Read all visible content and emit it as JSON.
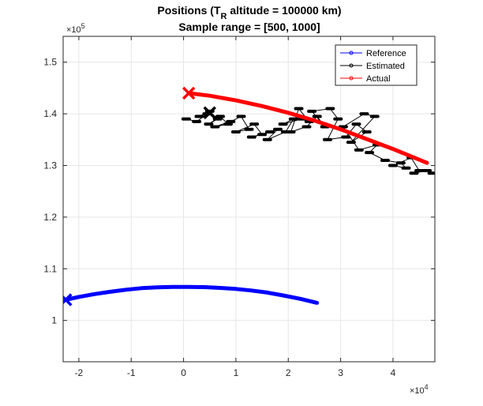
{
  "chart_data": {
    "type": "line",
    "title_line1": "Positions (T",
    "title_sub": "R",
    "title_line1_rest": " altitude = 100000 km)",
    "title_line2": "Sample range = [500, 1000]",
    "x_exponent_base": "×10",
    "x_exponent_power": "4",
    "y_exponent_base": "×10",
    "y_exponent_power": "5",
    "xlim": [
      -23000,
      48000
    ],
    "ylim": [
      92000,
      155000
    ],
    "x_ticks": [
      -20000,
      -10000,
      0,
      10000,
      20000,
      30000,
      40000
    ],
    "x_tick_labels": [
      "-2",
      "-1",
      "0",
      "1",
      "2",
      "3",
      "4"
    ],
    "y_ticks": [
      100000,
      110000,
      120000,
      130000,
      140000,
      150000
    ],
    "y_tick_labels": [
      "1",
      "1.1",
      "1.2",
      "1.3",
      "1.4",
      "1.5"
    ],
    "grid": true,
    "legend_position": "top-right",
    "series": [
      {
        "name": "Reference",
        "color": "#0000ff",
        "x": [
          -22500,
          -20000,
          -17000,
          -14000,
          -11000,
          -8000,
          -5000,
          -2000,
          1000,
          4000,
          7000,
          10000,
          13000,
          16000,
          19000,
          22000,
          25500
        ],
        "y": [
          104000,
          104550,
          105100,
          105550,
          105950,
          106250,
          106400,
          106500,
          106500,
          106450,
          106300,
          106100,
          105800,
          105400,
          104850,
          104250,
          103400
        ],
        "start_marker": {
          "x": -22500,
          "y": 104000
        }
      },
      {
        "name": "Estimated",
        "color": "#000000",
        "x": [
          500,
          2500,
          4500,
          3000,
          5000,
          6500,
          4800,
          7000,
          8500,
          6000,
          9000,
          11000,
          12500,
          10000,
          13500,
          15000,
          13000,
          16500,
          18000,
          16000,
          19500,
          21000,
          19000,
          22500,
          24000,
          22000,
          20500,
          23500,
          25500,
          27000,
          24500,
          28000,
          29500,
          27500,
          31000,
          33000,
          35000,
          32000,
          36500,
          34500,
          30500,
          33500,
          37000,
          35500,
          38500,
          41500,
          42500,
          40000,
          43500,
          45000,
          44000,
          46500,
          47500
        ],
        "y": [
          139000,
          138500,
          140000,
          139500,
          140500,
          139000,
          138000,
          139500,
          138000,
          137500,
          138500,
          139500,
          137000,
          136500,
          138000,
          136000,
          135500,
          136500,
          137000,
          135000,
          136500,
          139000,
          138000,
          139000,
          138500,
          141000,
          136500,
          137500,
          139500,
          137500,
          140500,
          141000,
          139000,
          135000,
          135500,
          138000,
          136500,
          134500,
          139500,
          140000,
          137500,
          133000,
          134000,
          132500,
          131000,
          130500,
          129500,
          130000,
          131500,
          129000,
          128500,
          129000,
          128500
        ],
        "start_marker": {
          "x": 5000,
          "y": 140200
        }
      },
      {
        "name": "Actual",
        "color": "#ff0000",
        "x": [
          1000,
          5000,
          10000,
          15000,
          20000,
          25000,
          30000,
          35000,
          40000,
          46500
        ],
        "y": [
          144000,
          143500,
          142600,
          141500,
          140200,
          138700,
          137000,
          135100,
          133200,
          130500
        ],
        "start_marker": {
          "x": 1000,
          "y": 144000
        }
      }
    ]
  }
}
